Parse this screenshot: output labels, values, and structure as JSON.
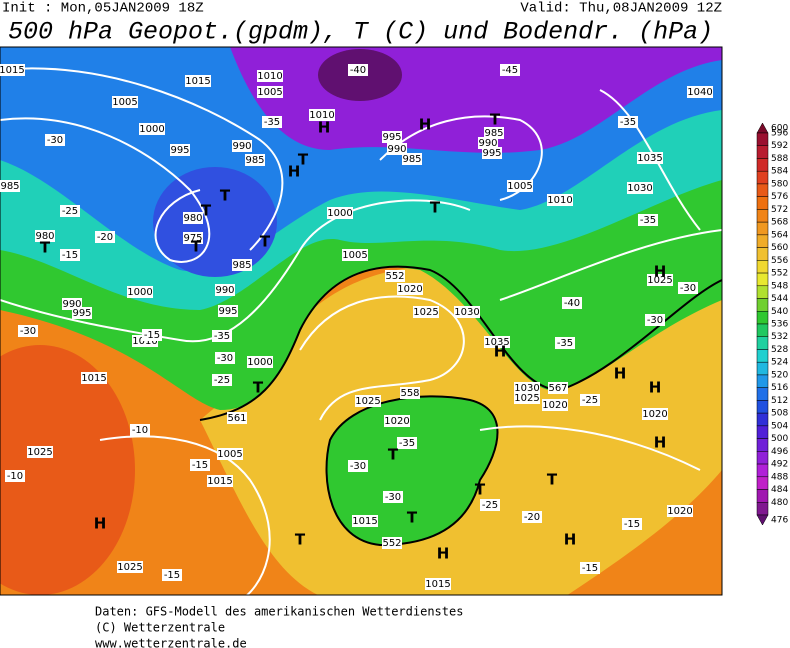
{
  "header": {
    "init": "Init : Mon,05JAN2009 18Z",
    "valid": "Valid: Thu,08JAN2009 12Z",
    "title": "500 hPa Geopot.(gpdm), T (C) und Bodendr. (hPa)"
  },
  "legend": {
    "values": [
      600,
      596,
      592,
      588,
      584,
      580,
      576,
      572,
      568,
      564,
      560,
      556,
      552,
      548,
      544,
      540,
      536,
      532,
      528,
      524,
      520,
      516,
      512,
      508,
      504,
      500,
      496,
      492,
      488,
      484,
      480,
      476
    ],
    "colors": [
      "#7a0a2a",
      "#9a1030",
      "#b81c30",
      "#d02a28",
      "#e04020",
      "#e85a18",
      "#ee7010",
      "#f08418",
      "#f09820",
      "#f0ac28",
      "#f0c030",
      "#f0d830",
      "#e8e830",
      "#b0e030",
      "#70d030",
      "#30c830",
      "#20c860",
      "#20d0a0",
      "#20d0d0",
      "#20b8e0",
      "#2098e8",
      "#2070e8",
      "#2050e0",
      "#3030d8",
      "#5020d8",
      "#7020d8",
      "#9020d8",
      "#b020d8",
      "#c020c8",
      "#a018b0",
      "#801890",
      "#601070"
    ]
  },
  "map_labels": [
    "1015",
    "1015",
    "1010",
    "1005",
    "1005",
    "1000",
    "995",
    "990",
    "985",
    "985",
    "980",
    "975",
    "980",
    "985",
    "990",
    "995",
    "1000",
    "1000",
    "1005",
    "1010",
    "995",
    "990",
    "985",
    "985",
    "990",
    "995",
    "1005",
    "1010",
    "1035",
    "1030",
    "1040",
    "1025",
    "1020",
    "1025",
    "1030",
    "1035",
    "1030",
    "1025",
    "1020",
    "1020",
    "1025",
    "1020",
    "1015",
    "1015",
    "1010",
    "1015",
    "1025",
    "1025",
    "1005",
    "1015",
    "1020",
    "1000",
    "990",
    "995",
    "-45",
    "-40",
    "-35",
    "-30",
    "-25",
    "-20",
    "-15",
    "-30",
    "-15",
    "-35",
    "-30",
    "-25",
    "-10",
    "-15",
    "-10",
    "-15",
    "-35",
    "-30",
    "-30",
    "-25",
    "-20",
    "-15",
    "-15",
    "-35",
    "-35",
    "-30",
    "-30",
    "-40",
    "-35",
    "-25",
    "552",
    "558",
    "561",
    "567",
    "552"
  ],
  "pressure_centers": [
    "H",
    "H",
    "H",
    "T",
    "T",
    "T",
    "T",
    "T",
    "T",
    "T",
    "T",
    "H",
    "H",
    "T",
    "H",
    "H",
    "H",
    "T",
    "T",
    "T",
    "H",
    "T",
    "T",
    "H",
    "H"
  ],
  "footer": [
    "Daten: GFS-Modell des amerikanischen Wetterdienstes",
    "(C) Wetterzentrale",
    "www.wetterzentrale.de"
  ]
}
